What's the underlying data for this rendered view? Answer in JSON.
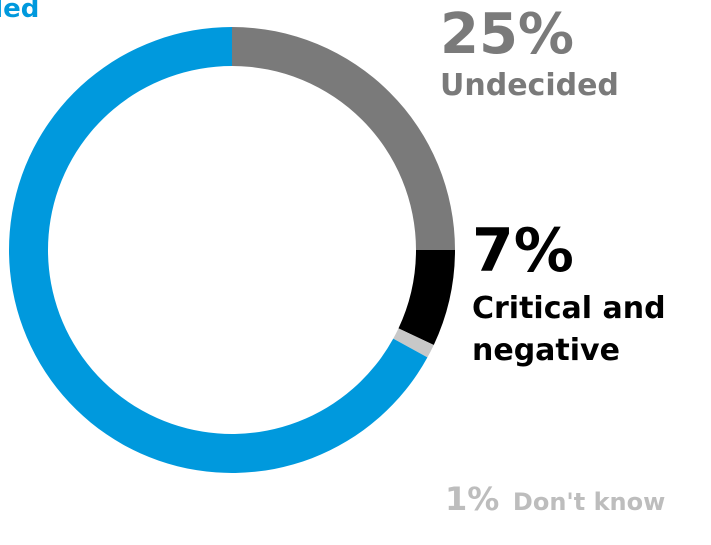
{
  "chart_data": {
    "type": "pie",
    "slices": [
      {
        "label": "Undecided",
        "display_value": "25%",
        "value": 25,
        "color": "#7a7a7a"
      },
      {
        "label": "Critical and negative",
        "display_value": "7%",
        "value": 7,
        "color": "#000000"
      },
      {
        "label": "Don't know",
        "display_value": "1%",
        "value": 1,
        "color": "#c8c8c8"
      },
      {
        "label": "nded",
        "display_value": "",
        "value": 67,
        "color": "#0099dd"
      }
    ]
  }
}
